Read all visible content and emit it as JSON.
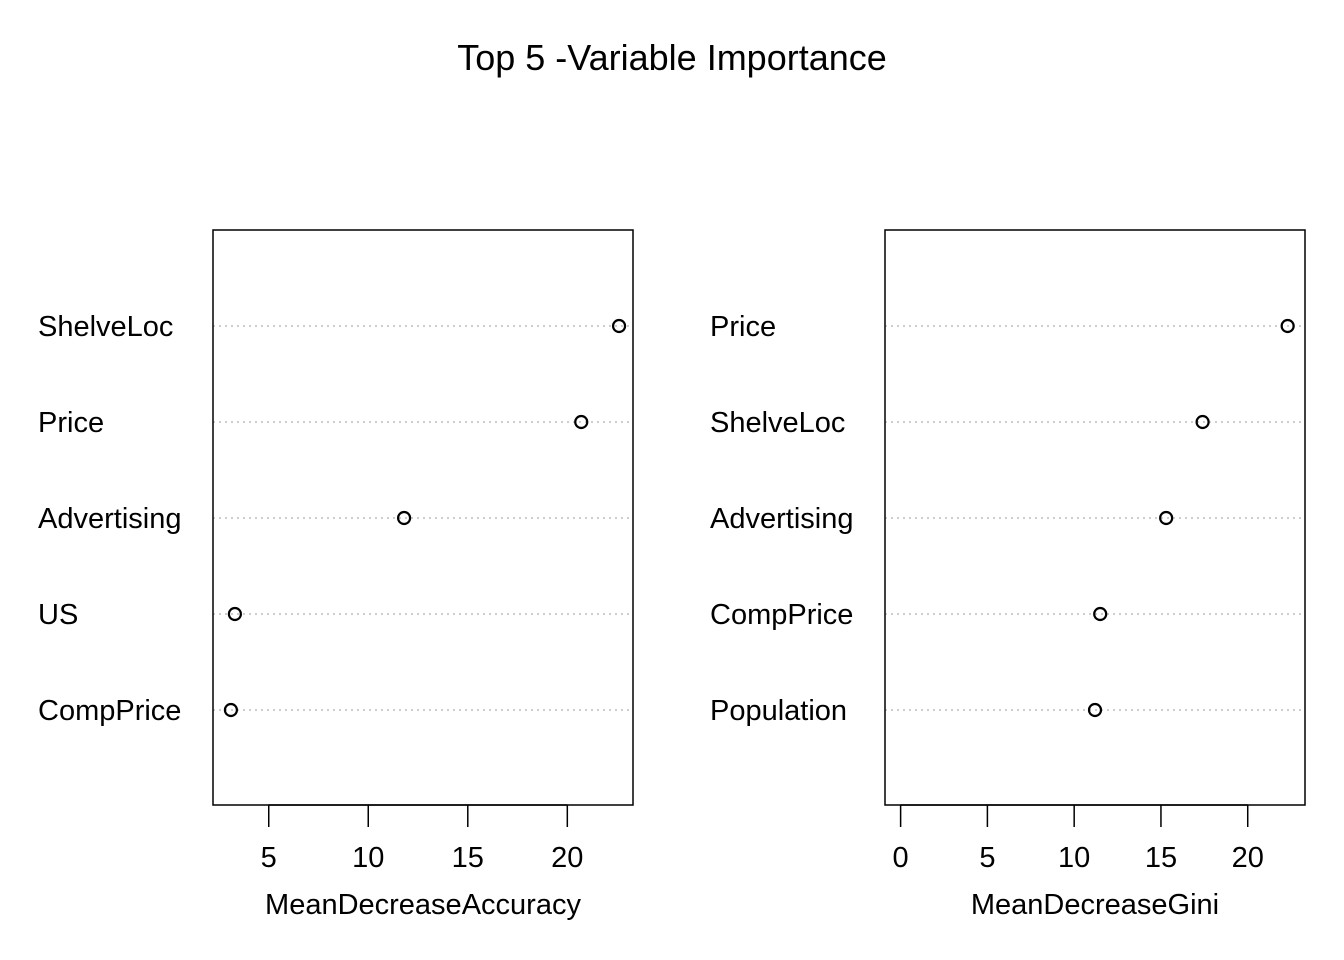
{
  "title": "Top 5 -Variable Importance",
  "chart_data": [
    {
      "type": "scatter",
      "xlabel": "MeanDecreaseAccuracy",
      "xlim": [
        2.2,
        23.3
      ],
      "xticks": [
        5,
        10,
        15,
        20
      ],
      "xtick_labels": [
        "5",
        "10",
        "15",
        "20"
      ],
      "categories": [
        "ShelveLoc",
        "Price",
        "Advertising",
        "US",
        "CompPrice"
      ],
      "values": [
        22.6,
        20.7,
        11.8,
        3.3,
        3.1
      ],
      "grid": "dotted horizontal lines",
      "legend": "none"
    },
    {
      "type": "scatter",
      "xlabel": "MeanDecreaseGini",
      "xlim": [
        -0.9,
        23.3
      ],
      "xticks": [
        0,
        5,
        10,
        15,
        20
      ],
      "xtick_labels": [
        "0",
        "5",
        "10",
        "15",
        "20"
      ],
      "categories": [
        "Price",
        "ShelveLoc",
        "Advertising",
        "CompPrice",
        "Population"
      ],
      "values": [
        22.3,
        17.4,
        15.3,
        11.5,
        11.2
      ],
      "grid": "dotted horizontal lines",
      "legend": "none"
    }
  ]
}
